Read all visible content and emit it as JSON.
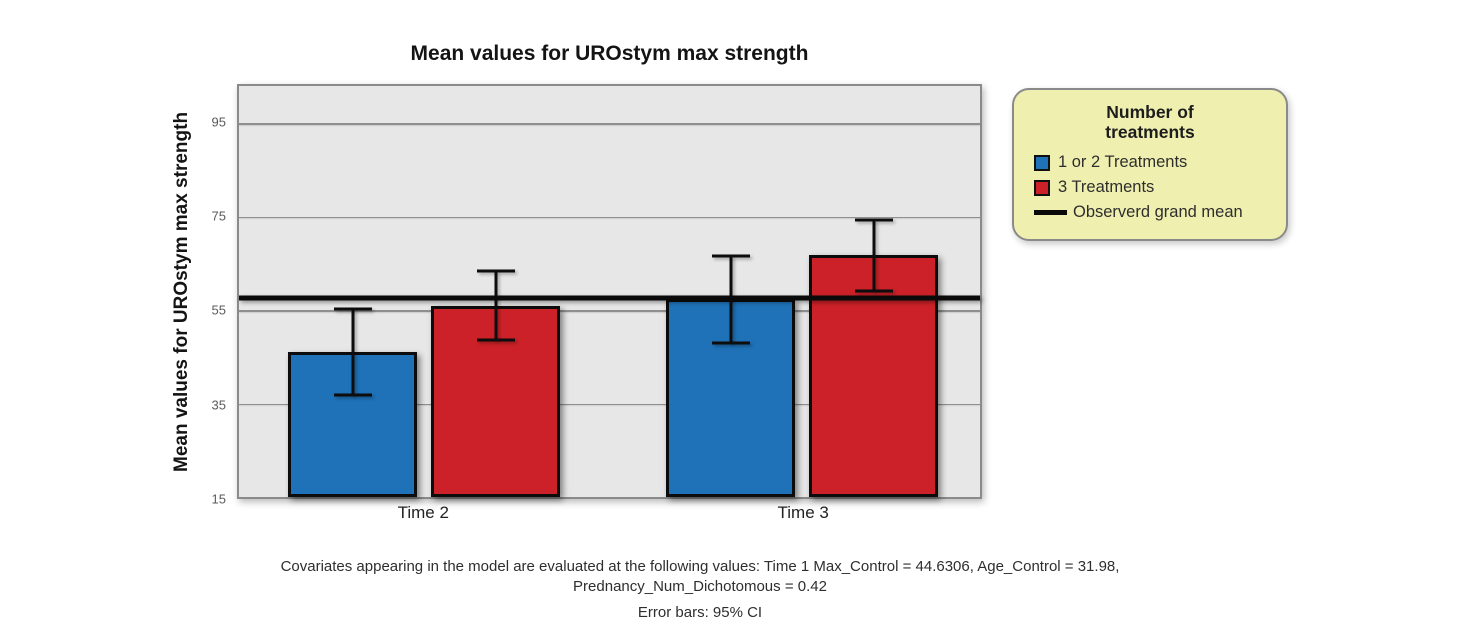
{
  "figure": {
    "footnote_line1": "Covariates appearing in the model are evaluated at the following values: Time 1 Max_Control = 44.6306, Age_Control = 31.98,",
    "footnote_line2": "Prednancy_Num_Dichotomous = 0.42",
    "error_bars_note": "Error bars: 95% CI"
  },
  "chart_data": {
    "type": "bar",
    "title": "Mean values for UROstym max strength",
    "ylabel": "Mean values for UROstym max strength",
    "xlabel": "",
    "categories": [
      "Time 2",
      "Time 3"
    ],
    "yticks": [
      15,
      35,
      55,
      75,
      95
    ],
    "ylim": [
      15,
      103
    ],
    "grid": true,
    "legend_position": "right",
    "legend_title": "Number of\ntreatments",
    "series": [
      {
        "name": "1 or 2 Treatments",
        "color": "#1f72b8",
        "values": [
          46.0,
          57.3
        ],
        "ci_low": [
          36.8,
          47.9
        ],
        "ci_high": [
          55.2,
          66.7
        ]
      },
      {
        "name": "3 Treatments",
        "color": "#cc2128",
        "values": [
          56.0,
          66.9
        ],
        "ci_low": [
          48.7,
          59.2
        ],
        "ci_high": [
          63.3,
          74.4
        ]
      }
    ],
    "grand_mean": {
      "label": "Observerd grand mean",
      "value": 57.6,
      "color": "#0a0a0a"
    },
    "error_bars_label": "Error bars: 95% CI"
  },
  "colors": {
    "plot_background": "#e7e7e7",
    "gridline": "#8f8f8f",
    "legend_background": "#eff0b0",
    "bar_border": "#0c0c0c",
    "error_bar": "#0d0d0d"
  }
}
